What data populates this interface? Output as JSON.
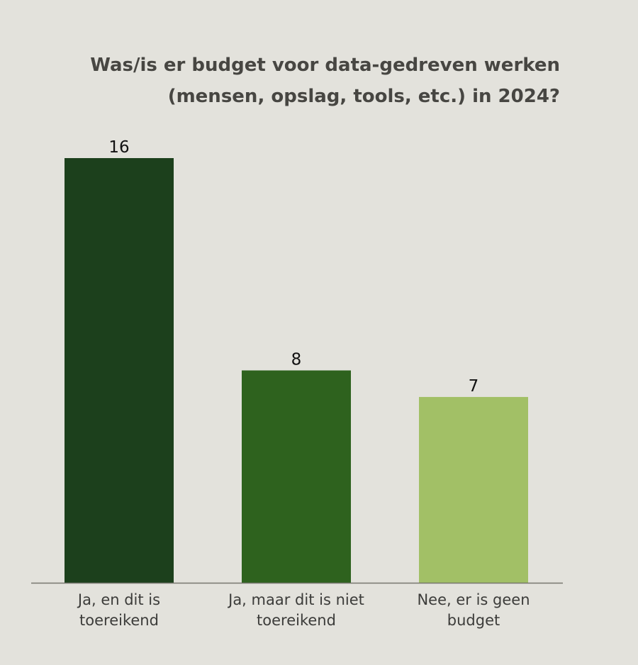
{
  "chart_data": {
    "type": "bar",
    "title": [
      "Was/is er budget voor data-gedreven werken",
      "(mensen, opslag, tools, etc.) in 2024?"
    ],
    "categories": [
      [
        "Ja, en dit is",
        "toereikend"
      ],
      [
        "Ja, maar dit is niet",
        "toereikend"
      ],
      [
        "Nee, er is geen",
        "budget"
      ]
    ],
    "values": [
      16,
      8,
      7
    ],
    "data_labels": [
      "16",
      "8",
      "7"
    ],
    "colors": [
      "#1c401c",
      "#2e621e",
      "#a2c066"
    ],
    "ylim": [
      0,
      16
    ],
    "grid": false,
    "legend": "none"
  }
}
